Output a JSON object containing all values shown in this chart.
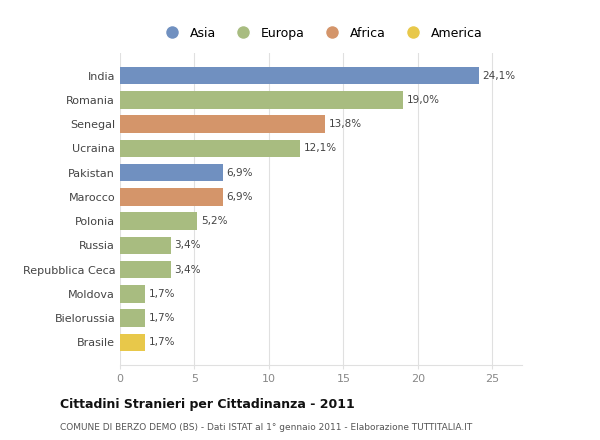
{
  "countries": [
    "India",
    "Romania",
    "Senegal",
    "Ucraina",
    "Pakistan",
    "Marocco",
    "Polonia",
    "Russia",
    "Repubblica Ceca",
    "Moldova",
    "Bielorussia",
    "Brasile"
  ],
  "values": [
    24.1,
    19.0,
    13.8,
    12.1,
    6.9,
    6.9,
    5.2,
    3.4,
    3.4,
    1.7,
    1.7,
    1.7
  ],
  "labels": [
    "24,1%",
    "19,0%",
    "13,8%",
    "12,1%",
    "6,9%",
    "6,9%",
    "5,2%",
    "3,4%",
    "3,4%",
    "1,7%",
    "1,7%",
    "1,7%"
  ],
  "colors": [
    "#7090c0",
    "#a8bc80",
    "#d4956a",
    "#a8bc80",
    "#7090c0",
    "#d4956a",
    "#a8bc80",
    "#a8bc80",
    "#a8bc80",
    "#a8bc80",
    "#a8bc80",
    "#e8c84a"
  ],
  "legend_labels": [
    "Asia",
    "Europa",
    "Africa",
    "America"
  ],
  "legend_colors": [
    "#7090c0",
    "#a8bc80",
    "#d4956a",
    "#e8c84a"
  ],
  "title": "Cittadini Stranieri per Cittadinanza - 2011",
  "subtitle": "COMUNE DI BERZO DEMO (BS) - Dati ISTAT al 1° gennaio 2011 - Elaborazione TUTTITALIA.IT",
  "xlim": [
    0,
    27
  ],
  "xticks": [
    0,
    5,
    10,
    15,
    20,
    25
  ],
  "background_color": "#ffffff",
  "grid_color": "#e0e0e0"
}
